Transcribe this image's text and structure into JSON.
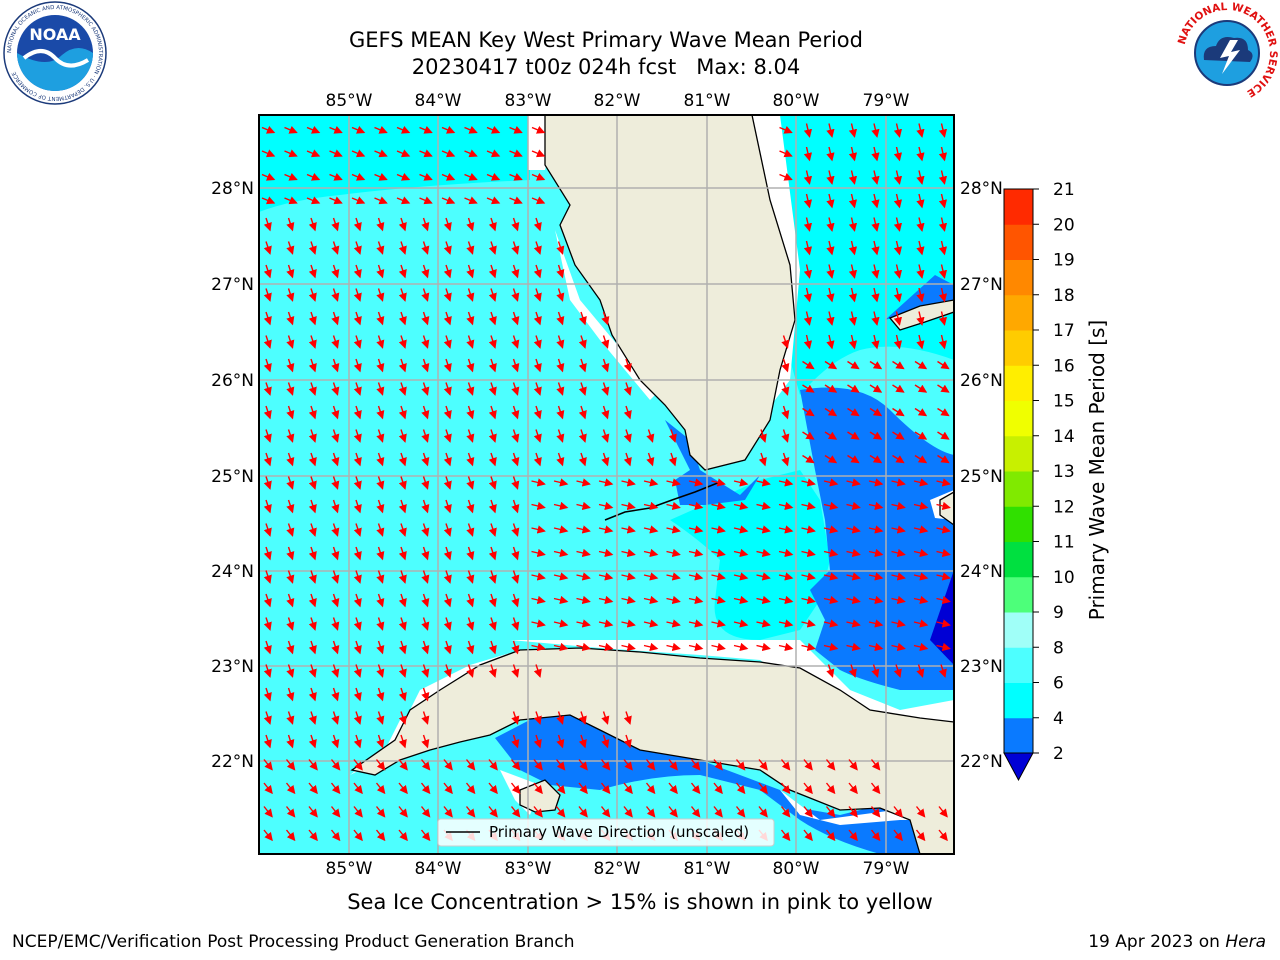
{
  "header": {
    "title": "GEFS MEAN Key West Primary Wave Mean Period",
    "date": "20230417",
    "cycle": "t00z",
    "forecast": "024h fcst",
    "max_label": "Max:",
    "max_value": "8.04"
  },
  "logos": {
    "left_text": "NOAA",
    "left_ring_text": "NATIONAL OCEANIC AND ATMOSPHERIC ADMINISTRATION · U.S. DEPARTMENT OF COMMERCE",
    "right_ring_text": "NATIONAL WEATHER SERVICE"
  },
  "map": {
    "lon_ticks": [
      "85°W",
      "84°W",
      "83°W",
      "82°W",
      "81°W",
      "80°W",
      "79°W"
    ],
    "lat_ticks": [
      "28°N",
      "27°N",
      "26°N",
      "25°N",
      "24°N",
      "23°N",
      "22°N"
    ],
    "legend_label": "Primary Wave Direction (unscaled)",
    "colors": {
      "land": "#eeeddb",
      "ocean_cyan": "#00ffff",
      "ocean_light": "#4dffff",
      "ocean_blue": "#0a7aff",
      "ocean_deep": "#0000d5",
      "arrow": "#ff0000",
      "grid": "#b0b0b0"
    }
  },
  "colorbar": {
    "label": "Primary Wave Mean Period [s]",
    "ticks": [
      "2",
      "4",
      "6",
      "8",
      "9",
      "10",
      "11",
      "12",
      "13",
      "14",
      "15",
      "16",
      "17",
      "18",
      "19",
      "20",
      "21"
    ],
    "colors": [
      "#0a7aff",
      "#00ffff",
      "#4dffff",
      "#a0fff8",
      "#4dff7a",
      "#00e040",
      "#30e000",
      "#80ea00",
      "#c8f000",
      "#f0ff00",
      "#ffee00",
      "#ffcc00",
      "#ffa800",
      "#ff8800",
      "#ff5500",
      "#ff2a00",
      "#ff0000"
    ],
    "under_color": "#0000d5"
  },
  "note": "Sea Ice Concentration > 15% is shown in pink to yellow",
  "footer": {
    "left": "NCEP/EMC/Verification Post Processing Product Generation Branch",
    "right_prefix": "19 Apr 2023 on",
    "right_host": "Hera"
  }
}
